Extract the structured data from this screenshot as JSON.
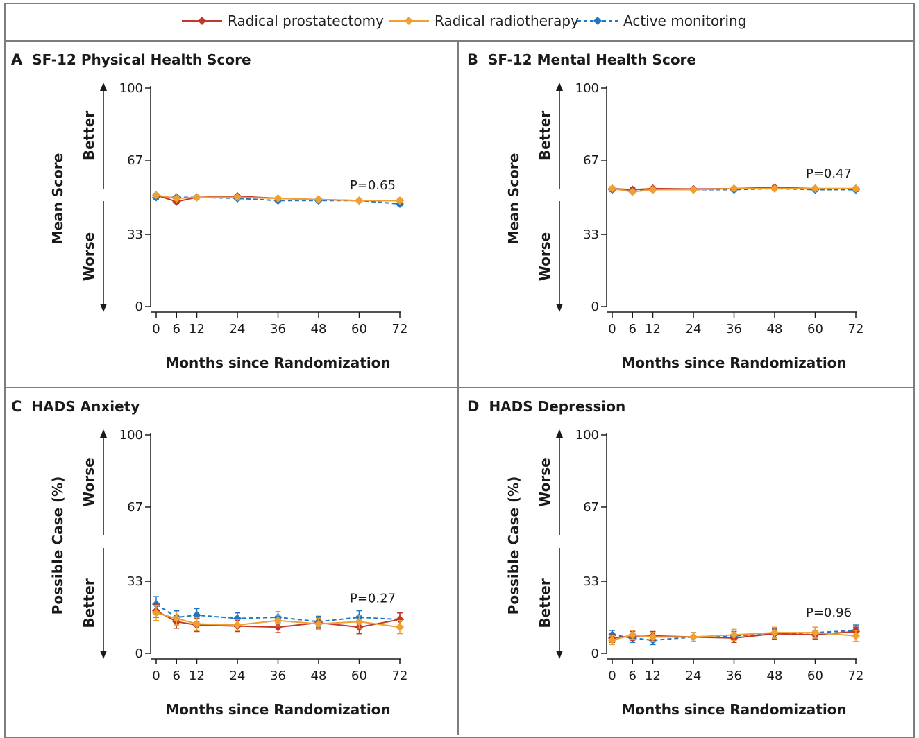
{
  "legend": {
    "items": [
      {
        "label": "Radical prostatectomy",
        "color": "#c0392b",
        "dash": false
      },
      {
        "label": "Radical radiotherapy",
        "color": "#f0a030",
        "dash": false
      },
      {
        "label": "Active monitoring",
        "color": "#1f77c4",
        "dash": true
      }
    ]
  },
  "chart_data": [
    {
      "type": "line",
      "panel_letter": "A",
      "title": "SF-12 Physical Health Score",
      "xlabel": "Months since Randomization",
      "ylabel": "Mean Score",
      "direction_top": "Better",
      "direction_bottom": "Worse",
      "x_ticks": [
        "0",
        "6",
        "12",
        "24",
        "36",
        "48",
        "60",
        "72"
      ],
      "y_ticks": [
        "0",
        "33",
        "67",
        "100"
      ],
      "ylim": [
        0,
        100
      ],
      "p_value": "P=0.65",
      "x": [
        0,
        6,
        12,
        24,
        36,
        48,
        60,
        72
      ],
      "series": [
        {
          "name": "Radical prostatectomy",
          "values": [
            51,
            48,
            50,
            50.5,
            49.5,
            49,
            48.5,
            48.5
          ],
          "err": [
            0.8,
            0.8,
            0.8,
            0.8,
            0.8,
            0.8,
            0.8,
            0.8
          ]
        },
        {
          "name": "Radical radiotherapy",
          "values": [
            51,
            49.5,
            50,
            50,
            49.5,
            49,
            48.5,
            48.5
          ],
          "err": [
            0.8,
            0.8,
            0.8,
            0.8,
            0.8,
            0.8,
            0.8,
            0.8
          ]
        },
        {
          "name": "Active monitoring",
          "values": [
            50,
            50,
            50,
            49.5,
            48.5,
            48.5,
            48.5,
            47
          ],
          "err": [
            0.8,
            0.8,
            0.8,
            0.8,
            0.8,
            0.8,
            0.8,
            0.8
          ]
        }
      ]
    },
    {
      "type": "line",
      "panel_letter": "B",
      "title": "SF-12 Mental Health Score",
      "xlabel": "Months since Randomization",
      "ylabel": "Mean Score",
      "direction_top": "Better",
      "direction_bottom": "Worse",
      "x_ticks": [
        "0",
        "6",
        "12",
        "24",
        "36",
        "48",
        "60",
        "72"
      ],
      "y_ticks": [
        "0",
        "33",
        "67",
        "100"
      ],
      "ylim": [
        0,
        100
      ],
      "p_value": "P=0.47",
      "x": [
        0,
        6,
        12,
        24,
        36,
        48,
        60,
        72
      ],
      "series": [
        {
          "name": "Radical prostatectomy",
          "values": [
            54,
            53.5,
            54,
            53.8,
            54,
            54.5,
            54,
            54
          ],
          "err": [
            0.8,
            0.8,
            0.8,
            0.8,
            0.8,
            0.8,
            0.8,
            0.8
          ]
        },
        {
          "name": "Radical radiotherapy",
          "values": [
            54,
            52.5,
            53.5,
            53.5,
            54,
            54,
            54,
            54
          ],
          "err": [
            0.8,
            0.8,
            0.8,
            0.8,
            0.8,
            0.8,
            0.8,
            0.8
          ]
        },
        {
          "name": "Active monitoring",
          "values": [
            53.5,
            53.5,
            53.5,
            53.5,
            53.5,
            54,
            53.5,
            53.5
          ],
          "err": [
            0.8,
            0.8,
            0.8,
            0.8,
            0.8,
            0.8,
            0.8,
            0.8
          ]
        }
      ]
    },
    {
      "type": "line",
      "panel_letter": "C",
      "title": "HADS Anxiety",
      "xlabel": "Months since Randomization",
      "ylabel": "Possible Case (%)",
      "direction_top": "Worse",
      "direction_bottom": "Better",
      "x_ticks": [
        "0",
        "6",
        "12",
        "24",
        "36",
        "48",
        "60",
        "72"
      ],
      "y_ticks": [
        "0",
        "33",
        "67",
        "100"
      ],
      "ylim": [
        0,
        100
      ],
      "p_value": "P=0.27",
      "x": [
        0,
        6,
        12,
        24,
        36,
        48,
        60,
        72
      ],
      "series": [
        {
          "name": "Radical prostatectomy",
          "values": [
            19.5,
            14.5,
            13,
            12.5,
            12,
            14,
            12,
            15.5
          ],
          "err": [
            3,
            3,
            3,
            2.5,
            2.5,
            2.5,
            3,
            3
          ]
        },
        {
          "name": "Radical radiotherapy",
          "values": [
            18.5,
            16,
            13.5,
            13,
            15,
            13.5,
            14.5,
            12
          ],
          "err": [
            3.5,
            3,
            3,
            2.5,
            2.5,
            2.5,
            3,
            3
          ]
        },
        {
          "name": "Active monitoring",
          "values": [
            22.5,
            16.5,
            17.5,
            16,
            16.5,
            14.5,
            16.5,
            15.5
          ],
          "err": [
            3.5,
            3,
            3,
            2.5,
            2.5,
            2.5,
            3,
            3
          ]
        }
      ]
    },
    {
      "type": "line",
      "panel_letter": "D",
      "title": "HADS Depression",
      "xlabel": "Months since Randomization",
      "ylabel": "Possible Case (%)",
      "direction_top": "Worse",
      "direction_bottom": "Better",
      "x_ticks": [
        "0",
        "6",
        "12",
        "24",
        "36",
        "48",
        "60",
        "72"
      ],
      "y_ticks": [
        "0",
        "33",
        "67",
        "100"
      ],
      "ylim": [
        0,
        100
      ],
      "p_value": "P=0.96",
      "x": [
        0,
        6,
        12,
        24,
        36,
        48,
        60,
        72
      ],
      "series": [
        {
          "name": "Radical prostatectomy",
          "values": [
            7,
            8,
            8,
            7.5,
            7,
            9,
            8.5,
            10
          ],
          "err": [
            2,
            2,
            2,
            2,
            2,
            2,
            2,
            2
          ]
        },
        {
          "name": "Radical radiotherapy",
          "values": [
            6,
            8.5,
            7.5,
            7.5,
            8.5,
            9.5,
            9.5,
            8
          ],
          "err": [
            2,
            2,
            2,
            2,
            2.5,
            2.5,
            2.5,
            2.5
          ]
        },
        {
          "name": "Active monitoring",
          "values": [
            8.5,
            7,
            6,
            7.5,
            8,
            9,
            9.5,
            10.5
          ],
          "err": [
            2,
            2,
            2,
            2,
            2,
            2.5,
            2.5,
            2.5
          ]
        }
      ]
    }
  ]
}
